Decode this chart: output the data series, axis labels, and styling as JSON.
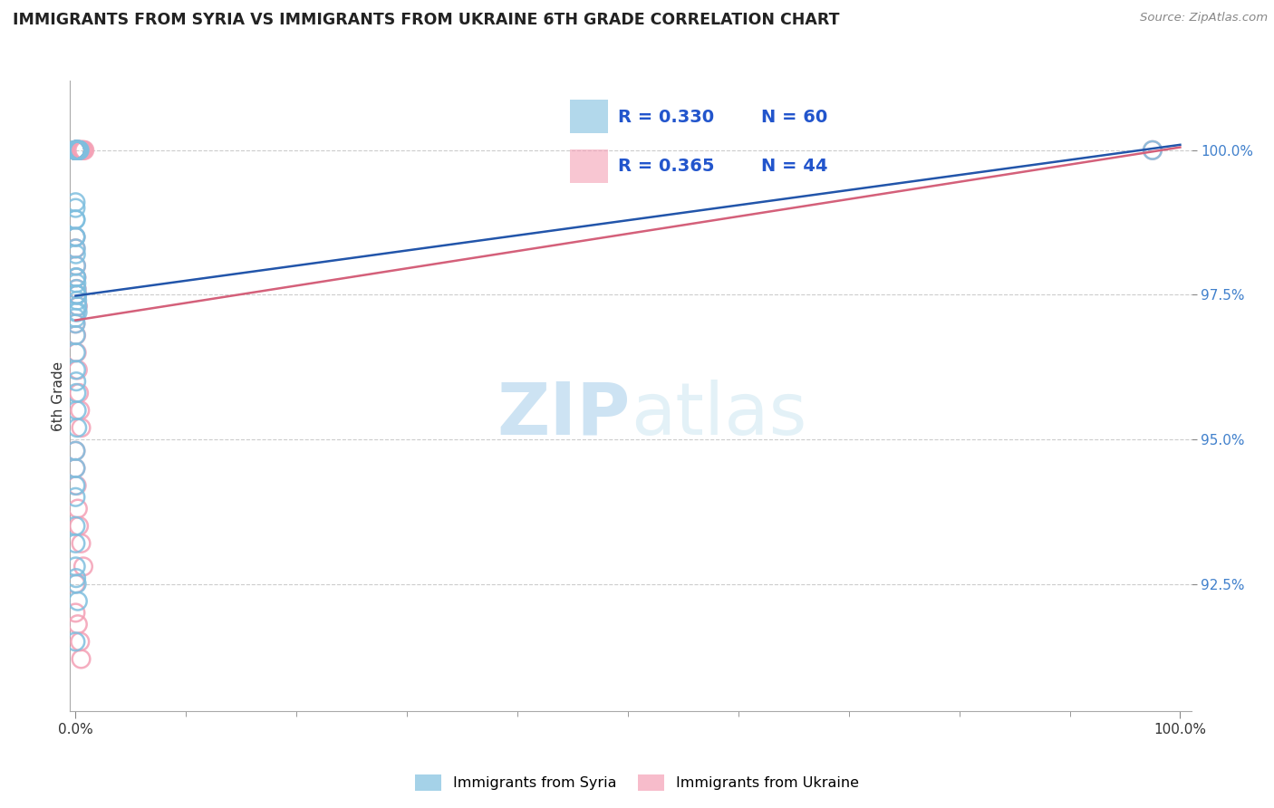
{
  "title": "IMMIGRANTS FROM SYRIA VS IMMIGRANTS FROM UKRAINE 6TH GRADE CORRELATION CHART",
  "source": "Source: ZipAtlas.com",
  "ylabel": "6th Grade",
  "yticks": [
    92.5,
    95.0,
    97.5,
    100.0
  ],
  "ytick_labels": [
    "92.5%",
    "95.0%",
    "97.5%",
    "100.0%"
  ],
  "syria_color": "#7fbfdf",
  "ukraine_color": "#f4a0b5",
  "syria_line_color": "#2255aa",
  "ukraine_line_color": "#d4607a",
  "legend_text_color": "#2255cc",
  "watermark_zip": "ZIP",
  "watermark_atlas": "atlas",
  "R_syria": 0.33,
  "N_syria": 60,
  "R_ukraine": 0.365,
  "N_ukraine": 44,
  "syria_x": [
    0.0,
    0.0,
    0.0,
    0.0,
    0.0,
    0.0,
    0.0,
    0.0,
    0.05,
    0.08,
    0.12,
    0.15,
    0.18,
    0.2,
    0.22,
    0.25,
    0.28,
    0.3,
    0.35,
    0.0,
    0.0,
    0.0,
    0.0,
    0.0,
    0.0,
    0.02,
    0.03,
    0.04,
    0.05,
    0.06,
    0.07,
    0.08,
    0.09,
    0.1,
    0.12,
    0.14,
    0.16,
    0.18,
    0.0,
    0.0,
    0.0,
    0.02,
    0.03,
    0.04,
    0.06,
    0.08,
    0.1,
    0.15,
    0.0,
    0.0,
    0.0,
    0.0,
    0.0,
    0.0,
    0.02,
    0.05,
    0.1,
    0.2,
    97.5,
    0.0
  ],
  "syria_y": [
    100.0,
    100.0,
    100.0,
    100.0,
    100.0,
    100.0,
    100.0,
    100.0,
    100.0,
    100.0,
    100.0,
    100.0,
    100.0,
    100.0,
    100.0,
    100.0,
    100.0,
    100.0,
    100.0,
    99.1,
    99.0,
    98.8,
    98.8,
    98.5,
    98.5,
    98.3,
    98.2,
    98.0,
    97.8,
    97.8,
    97.7,
    97.6,
    97.5,
    97.5,
    97.5,
    97.4,
    97.3,
    97.2,
    97.2,
    97.1,
    97.0,
    96.8,
    96.5,
    96.2,
    96.0,
    95.8,
    95.5,
    95.2,
    94.8,
    94.5,
    94.2,
    94.0,
    93.5,
    93.2,
    92.8,
    92.6,
    92.5,
    92.2,
    100.0,
    91.5
  ],
  "ukraine_x": [
    0.0,
    0.0,
    0.0,
    0.0,
    0.0,
    0.0,
    0.1,
    0.15,
    0.2,
    0.25,
    0.3,
    0.35,
    0.4,
    0.5,
    0.6,
    0.7,
    0.8,
    0.0,
    0.0,
    0.05,
    0.08,
    0.1,
    0.15,
    0.2,
    0.0,
    0.05,
    0.1,
    0.2,
    0.3,
    0.4,
    0.5,
    0.0,
    0.0,
    0.1,
    0.2,
    0.3,
    0.5,
    0.7,
    0.0,
    0.0,
    0.2,
    0.4,
    0.5,
    97.5
  ],
  "ukraine_y": [
    100.0,
    100.0,
    100.0,
    100.0,
    100.0,
    100.0,
    100.0,
    100.0,
    100.0,
    100.0,
    100.0,
    100.0,
    100.0,
    100.0,
    100.0,
    100.0,
    100.0,
    98.5,
    98.3,
    98.0,
    97.8,
    97.6,
    97.5,
    97.3,
    97.0,
    96.8,
    96.5,
    96.2,
    95.8,
    95.5,
    95.2,
    94.8,
    94.5,
    94.2,
    93.8,
    93.5,
    93.2,
    92.8,
    92.5,
    92.0,
    91.8,
    91.5,
    91.2,
    100.0
  ]
}
